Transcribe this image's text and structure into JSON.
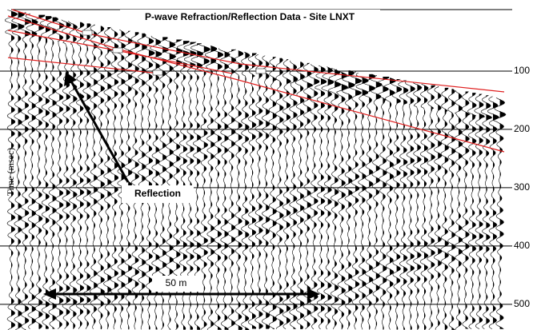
{
  "chart_data": {
    "type": "seismic",
    "title": "P-wave Refraction/Reflection Data - Site LNXT",
    "ylabel": "Time (msec)",
    "ylim": [
      0,
      540
    ],
    "yticks": [
      100,
      200,
      300,
      400,
      500
    ],
    "grid": true,
    "annotations": [
      "Reflection",
      "50 m"
    ]
  }
}
